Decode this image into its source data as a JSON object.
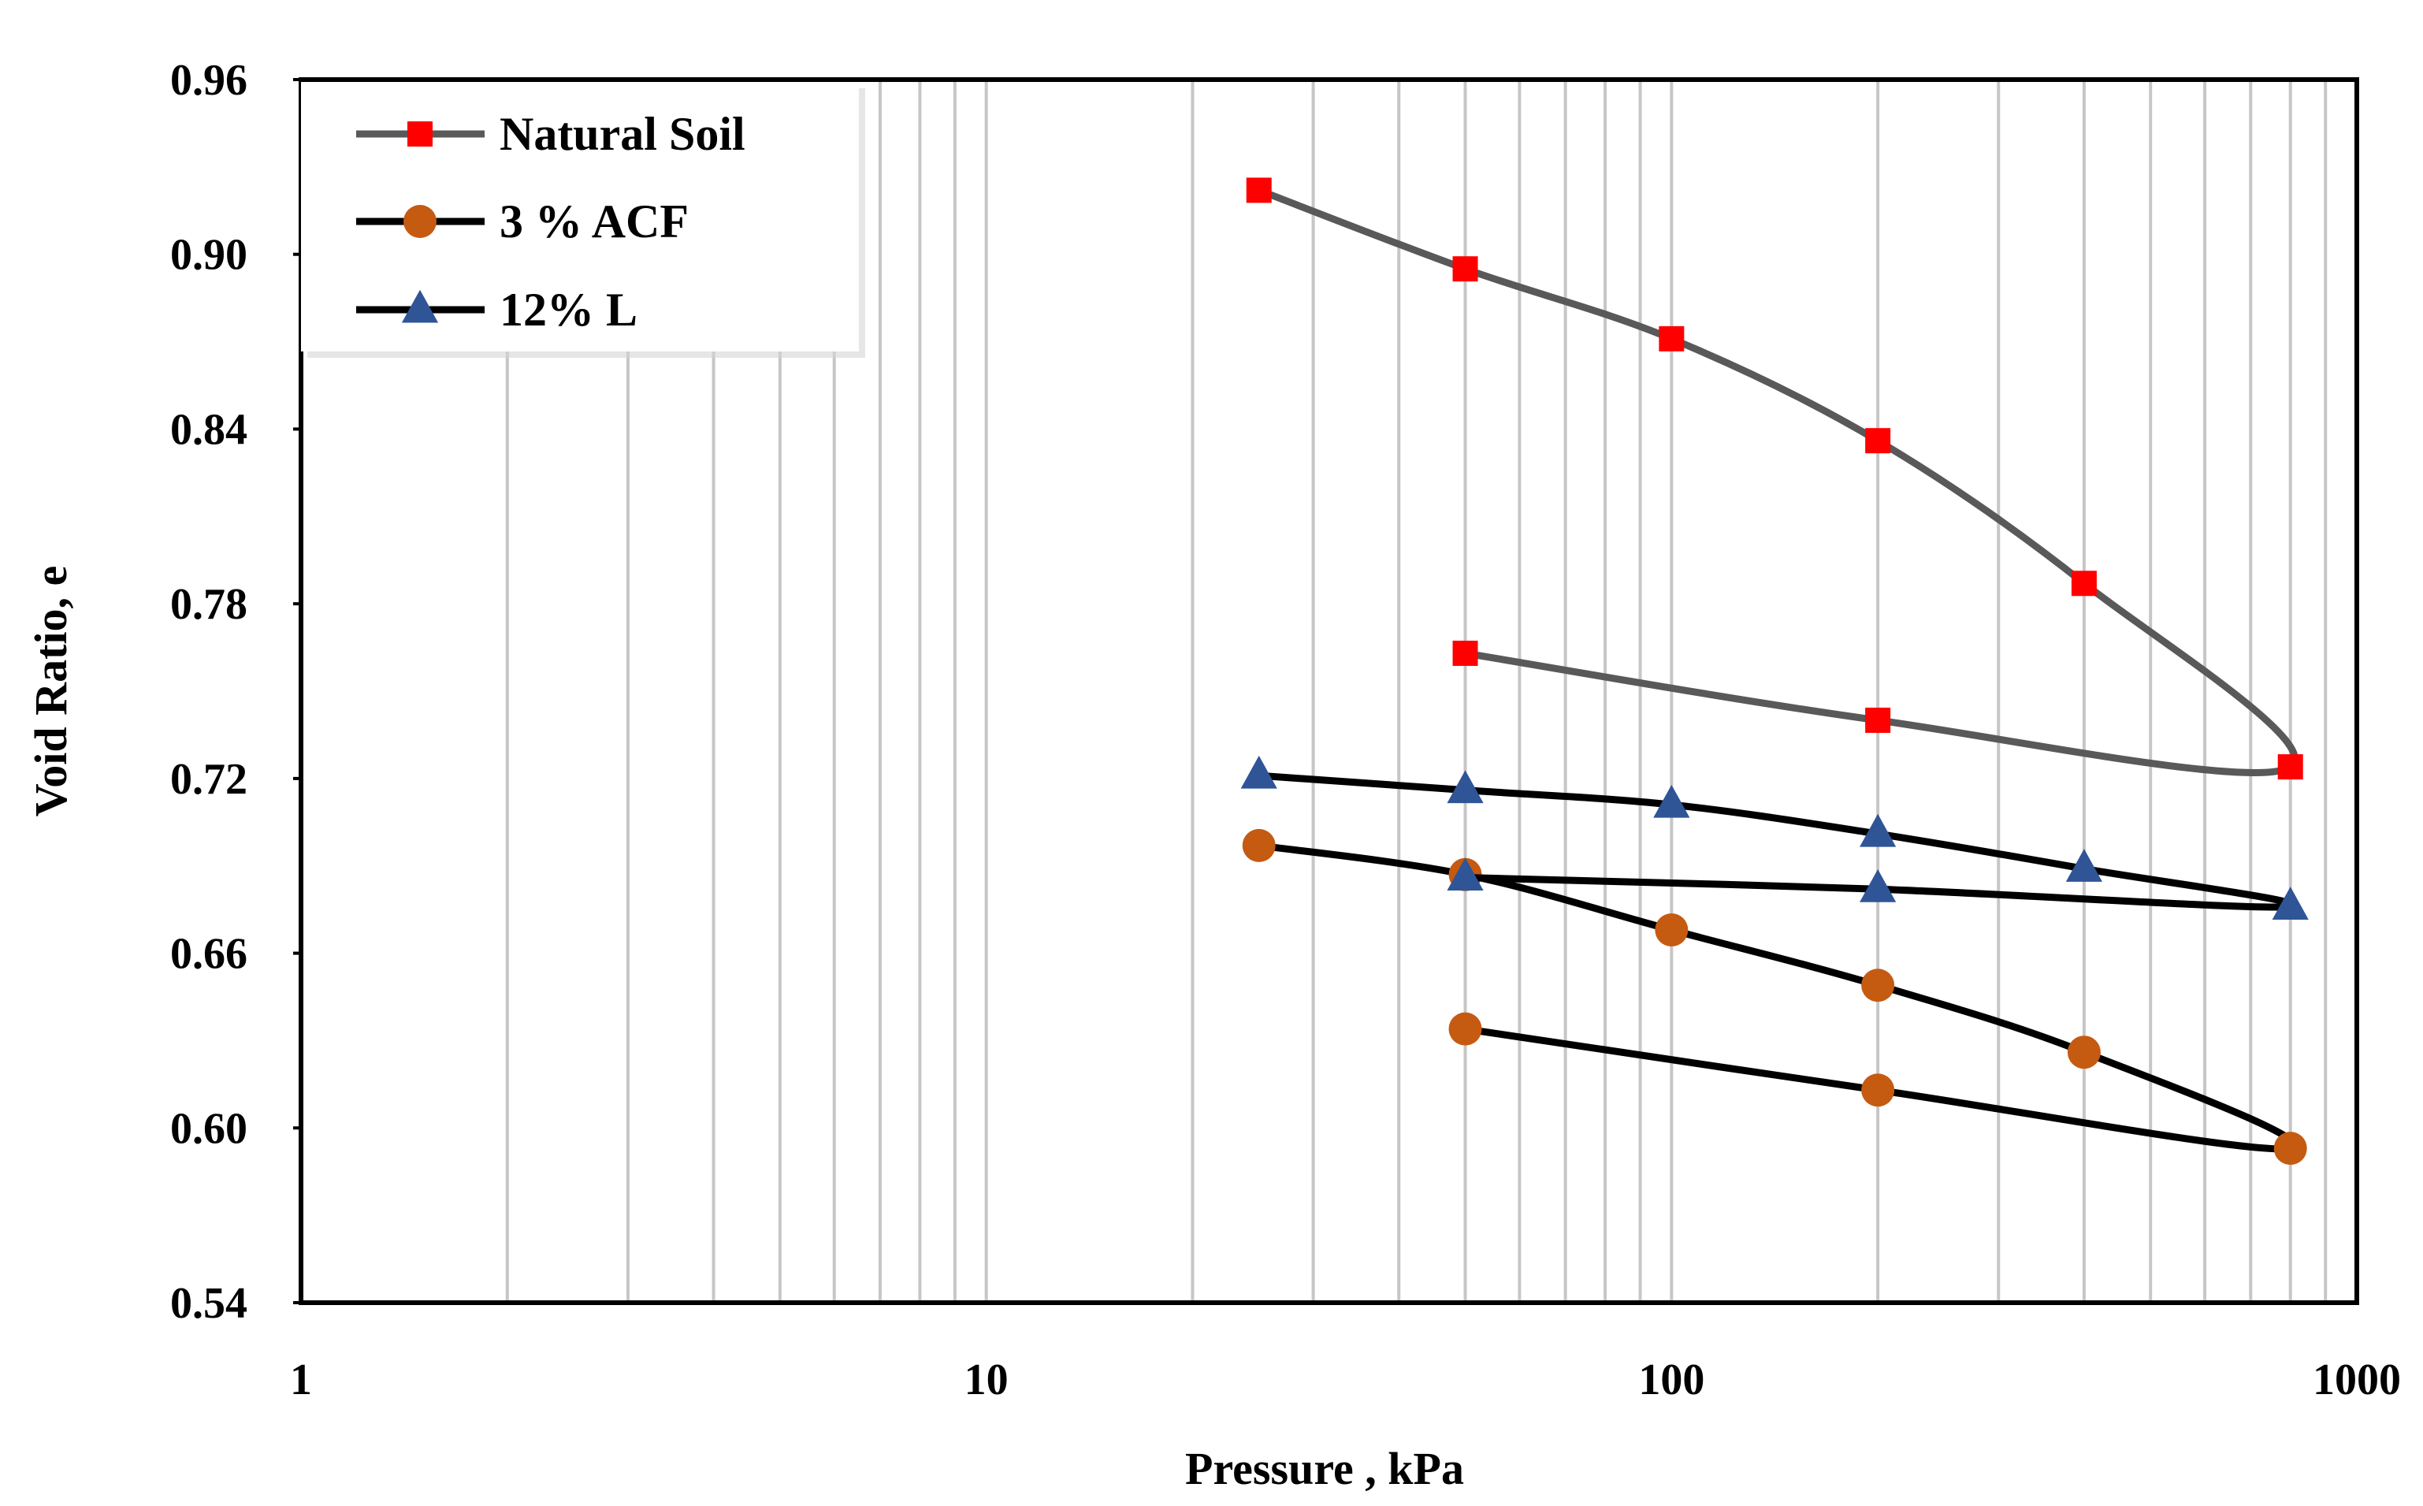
{
  "chart_data": {
    "type": "line",
    "title": "",
    "xlabel": "Pressure , kPa",
    "ylabel": "Void Ratio, e",
    "xscale": "log",
    "xlim": [
      1,
      1000
    ],
    "ylim": [
      0.54,
      0.96
    ],
    "x_ticks": [
      "1",
      "10",
      "100",
      "1000"
    ],
    "y_ticks": [
      "0.54",
      "0.60",
      "0.66",
      "0.72",
      "0.78",
      "0.84",
      "0.90",
      "0.96"
    ],
    "grid": "vertical minor log gridlines",
    "legend_position": "top-left",
    "series": [
      {
        "name": "Natural Soil",
        "marker": "square",
        "line_color": "#595959",
        "marker_color": "#ff0000",
        "x": [
          25,
          50,
          100,
          200,
          400,
          800,
          200,
          50
        ],
        "y": [
          0.922,
          0.895,
          0.871,
          0.836,
          0.787,
          0.724,
          0.74,
          0.763
        ]
      },
      {
        "name": "3 % ACF",
        "marker": "circle",
        "line_color": "#000000",
        "marker_color": "#c55a11",
        "x": [
          25,
          50,
          100,
          200,
          400,
          800,
          200,
          50
        ],
        "y": [
          0.697,
          0.687,
          0.668,
          0.649,
          0.626,
          0.593,
          0.613,
          0.634
        ]
      },
      {
        "name": "12% L",
        "marker": "triangle",
        "line_color": "#000000",
        "marker_color": "#2f5597",
        "x": [
          25,
          50,
          100,
          200,
          400,
          800,
          200,
          50
        ],
        "y": [
          0.721,
          0.716,
          0.711,
          0.701,
          0.689,
          0.676,
          0.682,
          0.686
        ]
      }
    ]
  }
}
